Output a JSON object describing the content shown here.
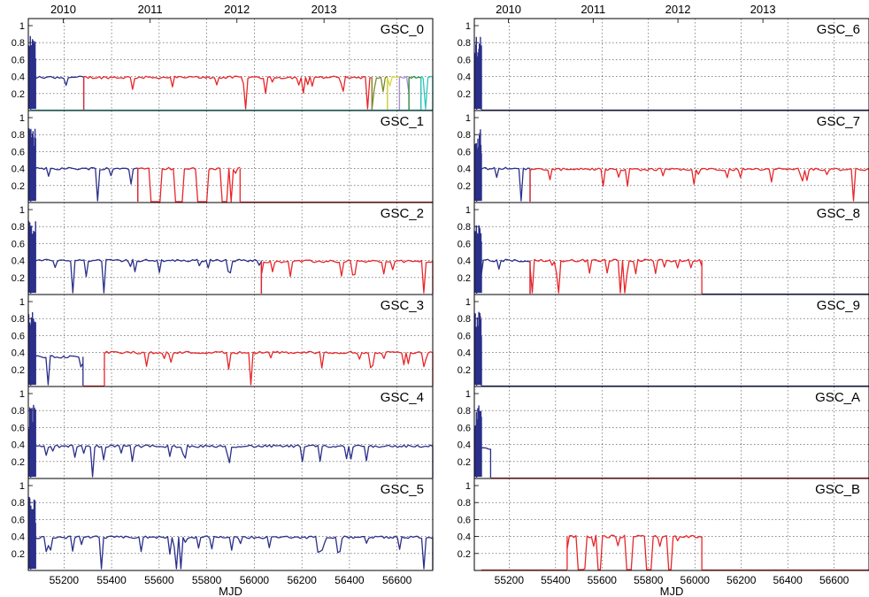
{
  "chart_data": {
    "type": "line",
    "xlabel": "MJD",
    "xlim": [
      55050,
      56750
    ],
    "ylim": [
      0,
      1
    ],
    "yticks": [
      0.2,
      0.4,
      0.6,
      0.8,
      1
    ],
    "xticks": [
      55200,
      55400,
      55600,
      55800,
      56000,
      56200,
      56400,
      56600
    ],
    "years": [
      {
        "label": "2010",
        "mjd": 55197
      },
      {
        "label": "2011",
        "mjd": 55562
      },
      {
        "label": "2012",
        "mjd": 55927
      },
      {
        "label": "2013",
        "mjd": 56293
      }
    ],
    "colors": {
      "blue": "#2b2f8a",
      "red": "#e8262a",
      "cyan": "#2cc7c0",
      "green": "#2f8c3a",
      "olive": "#7d8a2a",
      "yellow": "#d8d83a",
      "violet": "#a98ee0"
    },
    "panels": [
      {
        "label": "GSC_0",
        "segments": [
          {
            "color": "blue",
            "x": [
              55060,
              55283
            ],
            "level": 0.39
          },
          {
            "color": "red",
            "x": [
              55283,
              56495
            ],
            "level": 0.39
          },
          {
            "color": "cyan",
            "x": [
              55060,
              56750
            ],
            "level": 0.005
          },
          {
            "color": "olive",
            "x": [
              56495,
              56560
            ],
            "level": 0.39
          },
          {
            "color": "yellow",
            "x": [
              56560,
              56610
            ],
            "level": 0.39
          },
          {
            "color": "violet",
            "x": [
              56610,
              56650
            ],
            "level": 0.39
          },
          {
            "color": "green",
            "x": [
              56650,
              56700
            ],
            "level": 0.39
          },
          {
            "color": "cyan",
            "x": [
              56700,
              56750
            ],
            "level": 0.39
          }
        ]
      },
      {
        "label": "GSC_1",
        "segments": [
          {
            "color": "blue",
            "x": [
              55060,
              55510
            ],
            "level": 0.4
          },
          {
            "color": "red",
            "x": [
              55510,
              55940
            ],
            "level": 0.4,
            "gaps": [
              [
                55560,
                55610
              ],
              [
                55660,
                55700
              ],
              [
                55760,
                55800
              ],
              [
                55860,
                55890
              ],
              [
                55900,
                55910
              ]
            ]
          },
          {
            "color": "red",
            "x": [
              55940,
              56750
            ],
            "level": 0.005
          }
        ]
      },
      {
        "label": "GSC_2",
        "segments": [
          {
            "color": "blue",
            "x": [
              55060,
              56030
            ],
            "level": 0.4
          },
          {
            "color": "red",
            "x": [
              56030,
              56750
            ],
            "level": 0.39
          }
        ]
      },
      {
        "label": "GSC_3",
        "segments": [
          {
            "color": "blue",
            "x": [
              55060,
              55280
            ],
            "level": 0.35
          },
          {
            "color": "red",
            "x": [
              55280,
              55370
            ],
            "level": 0.005
          },
          {
            "color": "red",
            "x": [
              55370,
              56750
            ],
            "level": 0.4
          }
        ]
      },
      {
        "label": "GSC_4",
        "segments": [
          {
            "color": "blue",
            "x": [
              55060,
              56750
            ],
            "level": 0.38
          }
        ]
      },
      {
        "label": "GSC_5",
        "segments": [
          {
            "color": "blue",
            "x": [
              55060,
              56750
            ],
            "level": 0.39
          }
        ]
      },
      {
        "label": "GSC_6",
        "segments": [
          {
            "color": "blue",
            "x": [
              55060,
              55080
            ],
            "level": 0.4
          },
          {
            "color": "blue",
            "x": [
              55080,
              56750
            ],
            "level": 0.005
          }
        ]
      },
      {
        "label": "GSC_7",
        "segments": [
          {
            "color": "blue",
            "x": [
              55060,
              55290
            ],
            "level": 0.4
          },
          {
            "color": "red",
            "x": [
              55290,
              56750
            ],
            "level": 0.39
          }
        ]
      },
      {
        "label": "GSC_8",
        "segments": [
          {
            "color": "blue",
            "x": [
              55060,
              55290
            ],
            "level": 0.4
          },
          {
            "color": "red",
            "x": [
              55290,
              56030
            ],
            "level": 0.4
          },
          {
            "color": "blue",
            "x": [
              56030,
              56750
            ],
            "level": 0.005
          }
        ]
      },
      {
        "label": "GSC_9",
        "segments": [
          {
            "color": "blue",
            "x": [
              55060,
              55080
            ],
            "level": 0.4
          },
          {
            "color": "blue",
            "x": [
              55080,
              56750
            ],
            "level": 0.005
          }
        ]
      },
      {
        "label": "GSC_A",
        "segments": [
          {
            "color": "blue",
            "x": [
              55060,
              55120
            ],
            "level": 0.35
          },
          {
            "color": "red",
            "x": [
              55120,
              56750
            ],
            "level": 0.005
          }
        ]
      },
      {
        "label": "GSC_B",
        "segments": [
          {
            "color": "red",
            "x": [
              55080,
              55450
            ],
            "level": 0.005
          },
          {
            "color": "red",
            "x": [
              55450,
              56030
            ],
            "level": 0.4,
            "gaps": [
              [
                55490,
                55520
              ],
              [
                55580,
                55600
              ],
              [
                55700,
                55730
              ],
              [
                55790,
                55820
              ],
              [
                55880,
                55900
              ]
            ]
          },
          {
            "color": "red",
            "x": [
              56030,
              56750
            ],
            "level": 0.005
          }
        ]
      }
    ]
  }
}
